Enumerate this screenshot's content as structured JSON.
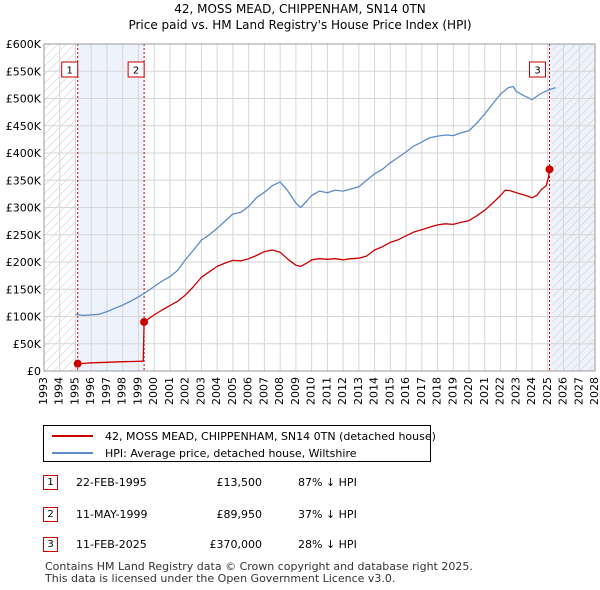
{
  "title_line1": "42, MOSS MEAD, CHIPPENHAM, SN14 0TN",
  "title_line2": "Price paid vs. HM Land Registry's House Price Index (HPI)",
  "colors": {
    "price_line": "#cc0000",
    "hpi_line": "#5b8cc8",
    "shade": "#eef2fb",
    "grid": "#d6d6d6"
  },
  "chart_data": {
    "type": "line",
    "x_range": [
      1993,
      2028
    ],
    "y_range": [
      0,
      600000
    ],
    "x_ticks": [
      "1993",
      "1994",
      "1995",
      "1996",
      "1997",
      "1998",
      "1999",
      "2000",
      "2001",
      "2002",
      "2003",
      "2004",
      "2005",
      "2006",
      "2007",
      "2008",
      "2009",
      "2010",
      "2011",
      "2012",
      "2013",
      "2014",
      "2015",
      "2016",
      "2017",
      "2018",
      "2019",
      "2020",
      "2021",
      "2022",
      "2023",
      "2024",
      "2025",
      "2026",
      "2027",
      "2028"
    ],
    "y_ticks": [
      {
        "value": 0,
        "label": "£0"
      },
      {
        "value": 50000,
        "label": "£50K"
      },
      {
        "value": 100000,
        "label": "£100K"
      },
      {
        "value": 150000,
        "label": "£150K"
      },
      {
        "value": 200000,
        "label": "£200K"
      },
      {
        "value": 250000,
        "label": "£250K"
      },
      {
        "value": 300000,
        "label": "£300K"
      },
      {
        "value": 350000,
        "label": "£350K"
      },
      {
        "value": 400000,
        "label": "£400K"
      },
      {
        "value": 450000,
        "label": "£450K"
      },
      {
        "value": 500000,
        "label": "£500K"
      },
      {
        "value": 550000,
        "label": "£550K"
      },
      {
        "value": 600000,
        "label": "£600K"
      }
    ],
    "shaded_ranges": [
      [
        1995.14,
        1999.36
      ],
      [
        2025.11,
        2028
      ]
    ],
    "hatched_ranges": [
      [
        1993,
        1995.0
      ],
      [
        2025.3,
        2028
      ]
    ],
    "series": [
      {
        "name": "42, MOSS MEAD, CHIPPENHAM, SN14 0TN (detached house)",
        "x": [
          1995.14,
          1995.5,
          1996,
          1997,
          1998,
          1999.3,
          1999.36,
          1999.6,
          2000,
          2000.5,
          2001,
          2001.5,
          2002,
          2002.5,
          2003,
          2003.5,
          2004,
          2004.5,
          2005,
          2005.5,
          2006,
          2006.5,
          2007,
          2007.5,
          2008,
          2008.5,
          2009,
          2009.3,
          2009.7,
          2010,
          2010.5,
          2011,
          2011.5,
          2012,
          2012.5,
          2013,
          2013.5,
          2014,
          2014.5,
          2015,
          2015.5,
          2016,
          2016.5,
          2017,
          2017.5,
          2018,
          2018.5,
          2019,
          2019.5,
          2020,
          2020.5,
          2021,
          2021.5,
          2022,
          2022.3,
          2022.6,
          2023,
          2023.5,
          2024,
          2024.3,
          2024.6,
          2024.9,
          2025.05,
          2025.11
        ],
        "y": [
          13500,
          14000,
          15000,
          16000,
          17000,
          18000,
          89950,
          95000,
          103000,
          112000,
          120000,
          128000,
          140000,
          155000,
          172000,
          182000,
          192000,
          198000,
          203000,
          202000,
          206000,
          212000,
          219000,
          222000,
          218000,
          205000,
          194000,
          192000,
          198000,
          204000,
          206000,
          205000,
          206000,
          204000,
          206000,
          207000,
          211000,
          222000,
          228000,
          236000,
          241000,
          248000,
          255000,
          259000,
          264000,
          268000,
          270000,
          269000,
          273000,
          276000,
          285000,
          295000,
          308000,
          322000,
          332000,
          331000,
          327000,
          323000,
          318000,
          322000,
          333000,
          340000,
          356000,
          370000
        ]
      },
      {
        "name": "HPI: Average price, detached house, Wiltshire",
        "x": [
          1995.0,
          1995.5,
          1996,
          1996.5,
          1997,
          1997.5,
          1998,
          1998.5,
          1999,
          1999.5,
          2000,
          2000.5,
          2001,
          2001.5,
          2002,
          2002.5,
          2003,
          2003.5,
          2004,
          2004.5,
          2005,
          2005.5,
          2006,
          2006.5,
          2007,
          2007.5,
          2008,
          2008.5,
          2009,
          2009.3,
          2009.7,
          2010,
          2010.5,
          2011,
          2011.5,
          2012,
          2012.5,
          2013,
          2013.5,
          2014,
          2014.5,
          2015,
          2015.5,
          2016,
          2016.5,
          2017,
          2017.5,
          2018,
          2018.5,
          2019,
          2019.5,
          2020,
          2020.5,
          2021,
          2021.5,
          2022,
          2022.5,
          2022.8,
          2023,
          2023.5,
          2024,
          2024.5,
          2025,
          2025.5
        ],
        "y": [
          104000,
          102000,
          103000,
          104000,
          109000,
          115000,
          121000,
          128000,
          136000,
          145000,
          155000,
          165000,
          173000,
          185000,
          205000,
          222000,
          240000,
          250000,
          262000,
          275000,
          288000,
          291000,
          302000,
          318000,
          328000,
          340000,
          347000,
          330000,
          308000,
          300000,
          312000,
          322000,
          330000,
          327000,
          332000,
          330000,
          334000,
          338000,
          350000,
          362000,
          370000,
          382000,
          392000,
          402000,
          413000,
          420000,
          428000,
          431000,
          433000,
          432000,
          437000,
          441000,
          455000,
          472000,
          490000,
          508000,
          520000,
          522000,
          513000,
          505000,
          498000,
          508000,
          515000,
          520000
        ]
      }
    ],
    "transactions": [
      {
        "label": "1",
        "x": 1995.14,
        "y": 13500
      },
      {
        "label": "2",
        "x": 1999.36,
        "y": 89950
      },
      {
        "label": "3",
        "x": 2025.11,
        "y": 370000
      }
    ]
  },
  "legend": {
    "property": "42, MOSS MEAD, CHIPPENHAM, SN14 0TN (detached house)",
    "hpi": "HPI: Average price, detached house, Wiltshire"
  },
  "transactions": [
    {
      "num": "1",
      "date": "22-FEB-1995",
      "price": "£13,500",
      "hpi": "87% ↓ HPI"
    },
    {
      "num": "2",
      "date": "11-MAY-1999",
      "price": "£89,950",
      "hpi": "37% ↓ HPI"
    },
    {
      "num": "3",
      "date": "11-FEB-2025",
      "price": "£370,000",
      "hpi": "28% ↓ HPI"
    }
  ],
  "footer_line1": "Contains HM Land Registry data © Crown copyright and database right 2025.",
  "footer_line2": "This data is licensed under the Open Government Licence v3.0."
}
